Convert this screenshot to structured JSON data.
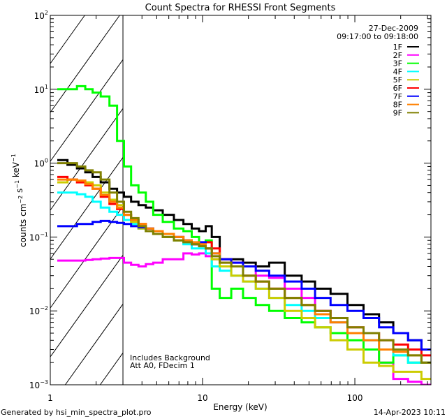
{
  "chart_data": {
    "type": "line",
    "title": "Count Spectra for RHESSI Front Segments",
    "xlabel": "Energy (keV)",
    "ylabel": "counts cm^-2 s^-1 keV^-1",
    "xscale": "log",
    "yscale": "log",
    "xlim": [
      1,
      316
    ],
    "ylim": [
      0.001,
      100
    ],
    "x_ticks": [
      {
        "v": 1,
        "label": "1"
      },
      {
        "v": 10,
        "label": "10"
      },
      {
        "v": 100,
        "label": "100"
      }
    ],
    "y_ticks": [
      {
        "v": 100,
        "label": "10",
        "exp": "2"
      },
      {
        "v": 10,
        "label": "10",
        "exp": "1"
      },
      {
        "v": 1,
        "label": "10",
        "exp": "0"
      },
      {
        "v": 0.1,
        "label": "10",
        "exp": "-1"
      },
      {
        "v": 0.01,
        "label": "10",
        "exp": "-2"
      },
      {
        "v": 0.001,
        "label": "10",
        "exp": "-3"
      }
    ],
    "hatched_region_keV": [
      1,
      3
    ],
    "date": "27-Dec-2009",
    "time_range": "09:17:00 to 09:18:00",
    "annotation_lines": [
      "Includes Background",
      "Att A0, FDecim 1"
    ],
    "legend_placement": "top-right",
    "x": [
      1.2,
      1.4,
      1.6,
      1.8,
      2,
      2.3,
      2.6,
      2.9,
      3.2,
      3.6,
      4,
      4.5,
      5,
      6,
      7,
      8,
      9,
      10,
      11,
      12,
      14,
      17,
      20,
      25,
      30,
      40,
      50,
      60,
      80,
      100,
      130,
      160,
      200,
      250,
      300
    ],
    "series": [
      {
        "name": "1F",
        "color": "#000000",
        "values": [
          1.1,
          0.95,
          0.85,
          0.75,
          0.65,
          0.55,
          0.45,
          0.4,
          0.35,
          0.3,
          0.27,
          0.25,
          0.23,
          0.2,
          0.17,
          0.15,
          0.13,
          0.12,
          0.14,
          0.1,
          0.05,
          0.05,
          0.045,
          0.04,
          0.045,
          0.03,
          0.025,
          0.02,
          0.017,
          0.012,
          0.009,
          0.007,
          0.005,
          0.004,
          0.003
        ]
      },
      {
        "name": "2F",
        "color": "#ff00ff",
        "values": [
          0.048,
          0.048,
          0.048,
          0.049,
          0.05,
          0.051,
          0.052,
          0.052,
          0.045,
          0.042,
          0.04,
          0.043,
          0.045,
          0.05,
          0.05,
          0.06,
          0.058,
          0.06,
          0.055,
          0.05,
          0.05,
          0.045,
          0.04,
          0.03,
          0.028,
          0.02,
          0.015,
          0.01,
          0.007,
          0.005,
          0.003,
          0.002,
          0.0012,
          0.0011,
          0.001
        ]
      },
      {
        "name": "3F",
        "color": "#00ff00",
        "values": [
          10,
          10,
          11,
          10,
          9,
          8,
          6,
          2,
          0.9,
          0.5,
          0.4,
          0.3,
          0.2,
          0.16,
          0.13,
          0.12,
          0.1,
          0.08,
          0.09,
          0.02,
          0.015,
          0.02,
          0.015,
          0.012,
          0.01,
          0.008,
          0.007,
          0.006,
          0.005,
          0.004,
          0.003,
          0.002,
          0.0025,
          0.002,
          0.002
        ]
      },
      {
        "name": "4F",
        "color": "#00ffff",
        "values": [
          0.4,
          0.4,
          0.38,
          0.35,
          0.3,
          0.25,
          0.22,
          0.2,
          0.17,
          0.15,
          0.13,
          0.12,
          0.11,
          0.1,
          0.09,
          0.08,
          0.07,
          0.07,
          0.06,
          0.04,
          0.035,
          0.03,
          0.025,
          0.02,
          0.015,
          0.012,
          0.01,
          0.008,
          0.007,
          0.005,
          0.004,
          0.003,
          0.0025,
          0.002,
          0.002
        ]
      },
      {
        "name": "5F",
        "color": "#cccc00",
        "values": [
          0.55,
          0.6,
          0.58,
          0.55,
          0.5,
          0.4,
          0.32,
          0.27,
          0.2,
          0.16,
          0.13,
          0.12,
          0.11,
          0.1,
          0.09,
          0.09,
          0.08,
          0.08,
          0.07,
          0.05,
          0.04,
          0.03,
          0.025,
          0.02,
          0.015,
          0.01,
          0.008,
          0.006,
          0.004,
          0.003,
          0.002,
          0.0018,
          0.0015,
          0.0015,
          0.0012
        ]
      },
      {
        "name": "6F",
        "color": "#ff0000",
        "values": [
          0.65,
          0.6,
          0.55,
          0.5,
          0.45,
          0.35,
          0.28,
          0.24,
          0.2,
          0.17,
          0.15,
          0.13,
          0.12,
          0.11,
          0.1,
          0.09,
          0.08,
          0.08,
          0.085,
          0.07,
          0.05,
          0.04,
          0.03,
          0.025,
          0.02,
          0.015,
          0.012,
          0.01,
          0.008,
          0.006,
          0.005,
          0.004,
          0.0035,
          0.003,
          0.0025
        ]
      },
      {
        "name": "7F",
        "color": "#0000ff",
        "values": [
          0.14,
          0.14,
          0.15,
          0.15,
          0.16,
          0.165,
          0.16,
          0.155,
          0.15,
          0.14,
          0.135,
          0.13,
          0.12,
          0.11,
          0.1,
          0.09,
          0.08,
          0.085,
          0.07,
          0.06,
          0.05,
          0.045,
          0.04,
          0.035,
          0.03,
          0.025,
          0.02,
          0.015,
          0.012,
          0.01,
          0.008,
          0.006,
          0.005,
          0.004,
          0.003
        ]
      },
      {
        "name": "8F",
        "color": "#ff8000",
        "values": [
          0.6,
          0.6,
          0.58,
          0.52,
          0.45,
          0.37,
          0.3,
          0.25,
          0.2,
          0.17,
          0.15,
          0.13,
          0.12,
          0.11,
          0.1,
          0.09,
          0.085,
          0.08,
          0.07,
          0.06,
          0.045,
          0.04,
          0.03,
          0.025,
          0.02,
          0.015,
          0.012,
          0.009,
          0.007,
          0.005,
          0.004,
          0.003,
          0.0028,
          0.0025,
          0.002
        ]
      },
      {
        "name": "9F",
        "color": "#808000",
        "values": [
          1.0,
          1.0,
          0.9,
          0.8,
          0.75,
          0.6,
          0.4,
          0.3,
          0.22,
          0.18,
          0.14,
          0.12,
          0.11,
          0.1,
          0.09,
          0.085,
          0.08,
          0.075,
          0.07,
          0.055,
          0.045,
          0.04,
          0.03,
          0.025,
          0.02,
          0.015,
          0.012,
          0.01,
          0.008,
          0.006,
          0.005,
          0.004,
          0.003,
          0.0025,
          0.002
        ]
      }
    ]
  },
  "footer": {
    "generated_by": "Generated by hsi_min_spectra_plot.pro",
    "timestamp": "14-Apr-2023 10:11"
  }
}
